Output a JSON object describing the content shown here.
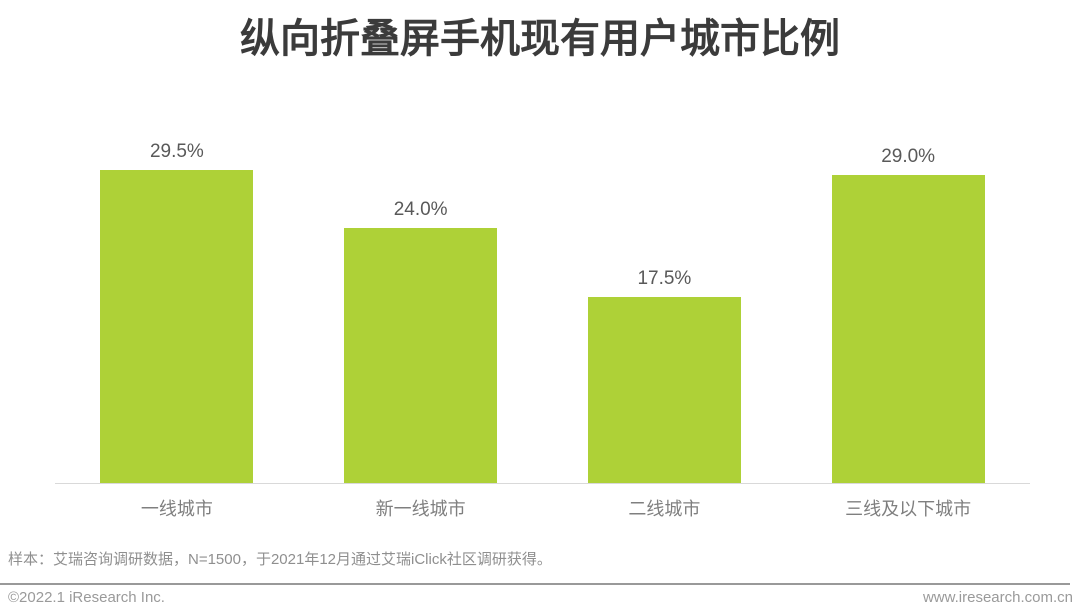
{
  "header": {
    "title": "纵向折叠屏手机现有用户城市比例"
  },
  "chart_data": {
    "type": "bar",
    "title": "纵向折叠屏手机现有用户城市比例",
    "categories": [
      "一线城市",
      "新一线城市",
      "二线城市",
      "三线及以下城市"
    ],
    "values": [
      29.5,
      24.0,
      17.5,
      29.0
    ],
    "value_labels": [
      "29.5%",
      "24.0%",
      "17.5%",
      "29.0%"
    ],
    "xlabel": "",
    "ylabel": "",
    "ylim": [
      0,
      32
    ],
    "grid": false,
    "legend": false,
    "bar_color": "#aed137",
    "unit": "percent"
  },
  "footer": {
    "sample_note": "样本：艾瑞咨询调研数据，N=1500，于2021年12月通过艾瑞iClick社区调研获得。",
    "copyright": "©2022.1 iResearch Inc.",
    "website": "www.iresearch.com.cn"
  },
  "colors": {
    "bar": "#aed137",
    "title_text": "#3b3b3b",
    "value_label": "#595959",
    "category_label": "#7f7f7f",
    "footer_text": "#8f8f8f",
    "axis_line": "#d9d9d9",
    "separator": "#999999"
  }
}
